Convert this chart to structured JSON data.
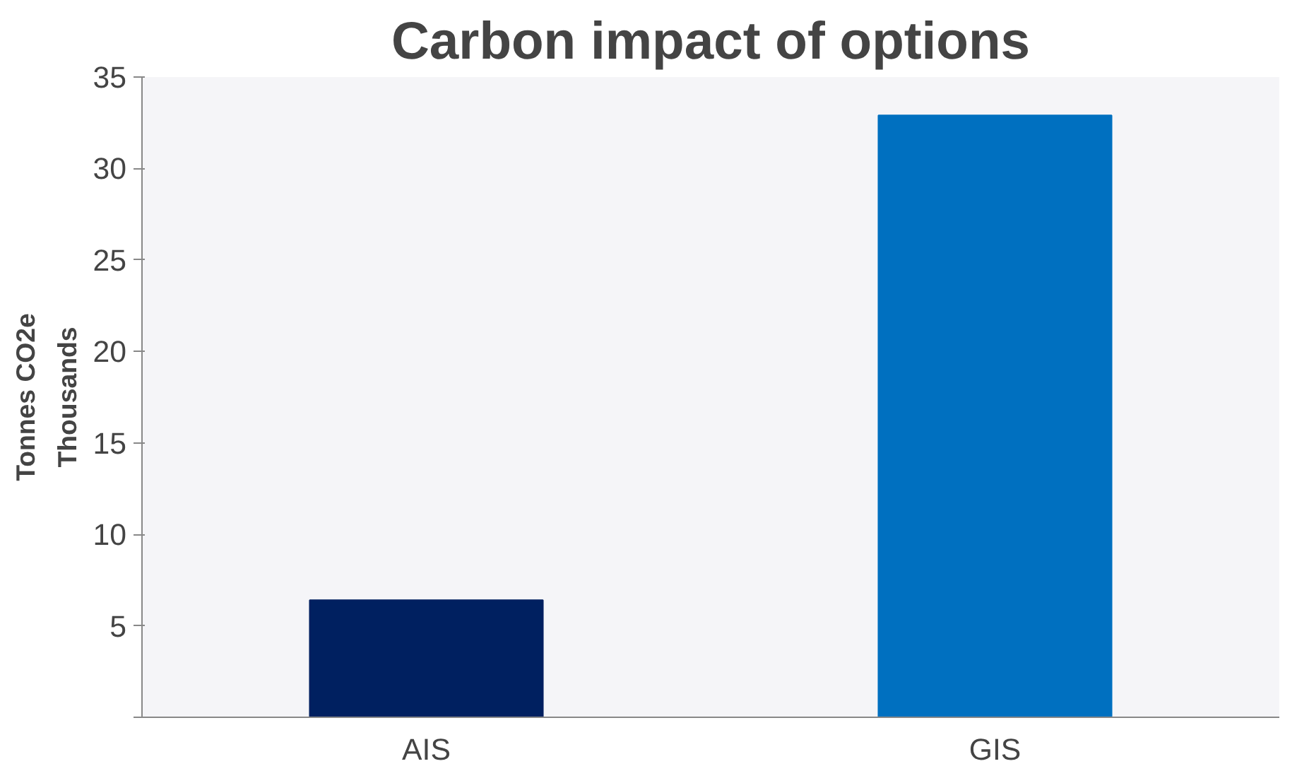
{
  "chart_data": {
    "type": "bar",
    "title": "Carbon impact of options",
    "ylabel": "Tonnes CO2e",
    "annotations": [
      "Thousands"
    ],
    "categories": [
      "AIS",
      "GIS"
    ],
    "values": [
      6.4,
      32.9
    ],
    "colors": [
      "#002060",
      "#0070c0"
    ],
    "ylim": [
      0,
      35
    ],
    "yticks": [
      {
        "value": 0,
        "label": null
      },
      5,
      10,
      15,
      20,
      25,
      30,
      35
    ],
    "grid": false
  }
}
